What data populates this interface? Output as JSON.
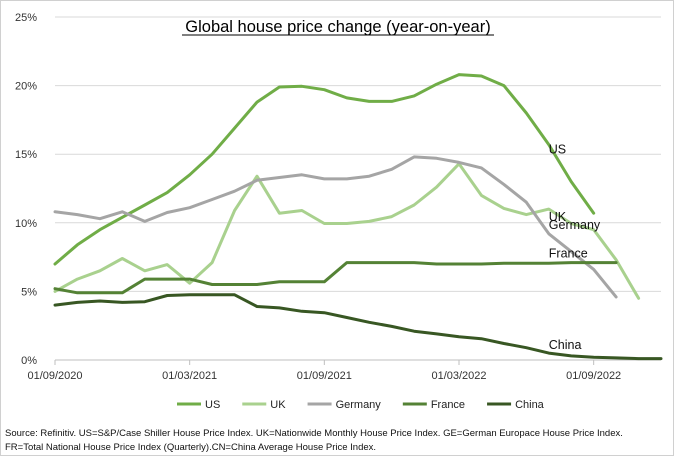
{
  "chart_data": {
    "type": "line",
    "title": "Global house price change (year-on-year)",
    "xlabel": "",
    "ylabel": "",
    "ylim": [
      0,
      25
    ],
    "yticks": [
      0,
      5,
      10,
      15,
      20,
      25
    ],
    "ytick_labels": [
      "0%",
      "5%",
      "10%",
      "15%",
      "20%",
      "25%"
    ],
    "xlim": [
      "2020-09",
      "2022-12"
    ],
    "xtick_labels": [
      "01/09/2020",
      "01/03/2021",
      "01/09/2021",
      "01/03/2022",
      "01/09/2022"
    ],
    "xtick_positions": [
      "2020-09",
      "2021-03",
      "2021-09",
      "2022-03",
      "2022-09"
    ],
    "grid": "horizontal",
    "legend_position": "bottom",
    "x": [
      "2020-09",
      "2020-10",
      "2020-11",
      "2020-12",
      "2021-01",
      "2021-02",
      "2021-03",
      "2021-04",
      "2021-05",
      "2021-06",
      "2021-07",
      "2021-08",
      "2021-09",
      "2021-10",
      "2021-11",
      "2021-12",
      "2022-01",
      "2022-02",
      "2022-03",
      "2022-04",
      "2022-05",
      "2022-06",
      "2022-07",
      "2022-08",
      "2022-09",
      "2022-10",
      "2022-11",
      "2022-12"
    ],
    "series": [
      {
        "name": "US",
        "color": "#70ad47",
        "values": [
          7.0,
          8.4,
          9.5,
          10.4,
          11.3,
          12.2,
          13.5,
          15.0,
          16.9,
          18.8,
          19.9,
          19.95,
          19.7,
          19.1,
          18.85,
          18.85,
          19.25,
          20.1,
          20.8,
          20.7,
          20.0,
          18.0,
          15.7,
          13.0,
          10.7,
          null,
          null,
          null
        ]
      },
      {
        "name": "UK",
        "color": "#a9d18e",
        "values": [
          5.0,
          5.9,
          6.5,
          7.4,
          6.5,
          6.95,
          5.6,
          7.1,
          10.9,
          13.4,
          10.7,
          10.9,
          9.95,
          9.95,
          10.1,
          10.45,
          11.3,
          12.6,
          14.3,
          12.0,
          11.05,
          10.6,
          11.0,
          9.95,
          9.5,
          7.3,
          4.5,
          null
        ]
      },
      {
        "name": "Germany",
        "color": "#a5a5a5",
        "values": [
          10.8,
          10.6,
          10.3,
          10.8,
          10.1,
          10.75,
          11.1,
          11.7,
          12.3,
          13.1,
          13.3,
          13.5,
          13.2,
          13.2,
          13.4,
          13.9,
          14.8,
          14.7,
          14.4,
          14.0,
          12.8,
          11.5,
          9.2,
          7.9,
          6.6,
          4.6,
          null,
          null
        ]
      },
      {
        "name": "France",
        "color": "#548235",
        "values": [
          5.2,
          4.9,
          4.9,
          4.9,
          5.9,
          5.9,
          5.9,
          5.5,
          5.5,
          5.5,
          5.7,
          5.7,
          5.7,
          7.1,
          7.1,
          7.1,
          7.1,
          7.0,
          7.0,
          7.0,
          7.05,
          7.05,
          7.05,
          7.1,
          7.1,
          7.1,
          null,
          null
        ]
      },
      {
        "name": "China",
        "color": "#385723",
        "values": [
          4.0,
          4.2,
          4.3,
          4.2,
          4.25,
          4.7,
          4.75,
          4.75,
          4.75,
          3.9,
          3.8,
          3.55,
          3.45,
          3.1,
          2.75,
          2.45,
          2.1,
          1.9,
          1.7,
          1.55,
          1.2,
          0.9,
          0.5,
          0.3,
          0.2,
          0.15,
          0.1,
          0.1
        ]
      }
    ],
    "annotations": [
      {
        "label": "US",
        "series": "US",
        "at": "2022-07"
      },
      {
        "label": "UK",
        "series": "UK",
        "at": "2022-07"
      },
      {
        "label": "Germany",
        "series": "Germany",
        "at": "2022-07"
      },
      {
        "label": "France",
        "series": "France",
        "at": "2022-07"
      },
      {
        "label": "China",
        "series": "China",
        "at": "2022-07"
      }
    ]
  },
  "source": {
    "line1": "Source: Refinitiv. US=S&P/Case Shiller House Price Index. UK=Nationwide Monthly House Price Index. GE=German Europace House Price Index.",
    "line2": "FR=Total National House Price Index (Quarterly).CN=China Average House Price Index."
  }
}
